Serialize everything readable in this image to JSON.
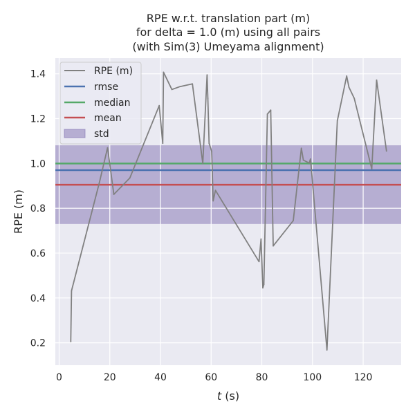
{
  "chart_data": {
    "type": "line",
    "title_lines": [
      "RPE w.r.t. translation part (m)",
      "for delta = 1.0 (m) using all pairs",
      "(with Sim(3) Umeyama alignment)"
    ],
    "xlabel_italic": "t",
    "xlabel_rest": " (s)",
    "ylabel": "RPE (m)",
    "xlim": [
      -1.5,
      135
    ],
    "ylim": [
      0.1,
      1.47
    ],
    "x_ticks": [
      0,
      20,
      40,
      60,
      80,
      100,
      120
    ],
    "y_ticks": [
      0.2,
      0.4,
      0.6,
      0.8,
      1.0,
      1.2,
      1.4
    ],
    "x_tick_labels": [
      "0",
      "20",
      "40",
      "60",
      "80",
      "100",
      "120"
    ],
    "y_tick_labels": [
      "0.2",
      "0.4",
      "0.6",
      "0.8",
      "1.0",
      "1.2",
      "1.4"
    ],
    "grid": true,
    "legend_position": "top-left",
    "series": [
      {
        "name": "RPE (m)",
        "color": "#808080",
        "x": [
          4.6,
          4.9,
          15.9,
          19.1,
          19.7,
          21.6,
          27.9,
          39.5,
          40.9,
          41.2,
          44.5,
          47.7,
          52.6,
          56.7,
          58.4,
          58.7,
          59.2,
          60.2,
          60.8,
          61.7,
          78.9,
          79.7,
          80.4,
          80.8,
          82.2,
          83.5,
          84.5,
          92.4,
          95.6,
          96.4,
          98.7,
          99.2,
          105.7,
          109.8,
          113.5,
          114.4,
          116.5,
          123.4,
          125.3,
          129.2
        ],
        "y": [
          0.205,
          0.432,
          0.915,
          1.07,
          1.02,
          0.862,
          0.935,
          1.258,
          1.09,
          1.407,
          1.33,
          1.343,
          1.355,
          1.0,
          1.395,
          1.29,
          1.09,
          1.055,
          0.833,
          0.88,
          0.562,
          0.663,
          0.445,
          0.46,
          1.22,
          1.238,
          0.632,
          0.745,
          1.068,
          1.015,
          1.002,
          1.02,
          0.168,
          1.19,
          1.39,
          1.34,
          1.29,
          0.976,
          1.372,
          1.055
        ]
      },
      {
        "name": "rmse",
        "color": "#4c72b0",
        "value": 0.97
      },
      {
        "name": "median",
        "color": "#55a868",
        "value": 1.0
      },
      {
        "name": "mean",
        "color": "#c44e52",
        "value": 0.905
      },
      {
        "name": "std",
        "color": "#8172b2",
        "range": [
          0.73,
          1.081
        ]
      }
    ]
  }
}
